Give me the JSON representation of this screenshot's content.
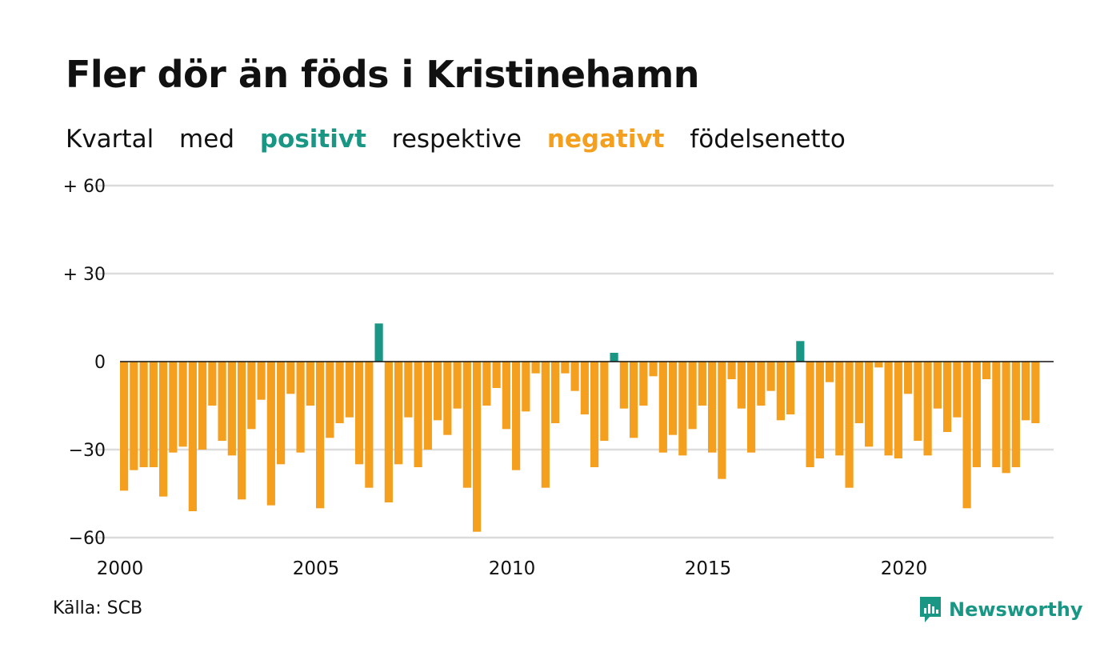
{
  "title": "Fler dör än föds i Kristinehamn",
  "subtitle": {
    "word1": "Kvartal",
    "word2": "med",
    "positive": "positivt",
    "word3": "respektive",
    "negative": "negativt",
    "word4": "födelsenetto"
  },
  "colors": {
    "positive": "#1a9685",
    "negative": "#f49f1d",
    "grid": "#dcdcdc",
    "axis": "#111111"
  },
  "source": "Källa: SCB",
  "logo": {
    "text": "Newsworthy",
    "icon": "newsworthy-chart-icon"
  },
  "chart_data": {
    "type": "bar",
    "ylim": [
      -60,
      60
    ],
    "y_ticks": [
      {
        "value": 60,
        "label": "+ 60"
      },
      {
        "value": 30,
        "label": "+ 30"
      },
      {
        "value": 0,
        "label": "0"
      },
      {
        "value": -30,
        "label": "−30"
      },
      {
        "value": -60,
        "label": "−60"
      }
    ],
    "x_ticks": [
      "2000",
      "2005",
      "2010",
      "2015",
      "2020"
    ],
    "x_start_year": 2000,
    "grid": true,
    "values": [
      -44,
      -37,
      -36,
      -36,
      -46,
      -31,
      -29,
      -51,
      -30,
      -15,
      -27,
      -32,
      -47,
      -23,
      -13,
      -49,
      -35,
      -11,
      -31,
      -15,
      -50,
      -26,
      -21,
      -19,
      -35,
      -43,
      13,
      -48,
      -35,
      -19,
      -36,
      -30,
      -20,
      -25,
      -16,
      -43,
      -58,
      -15,
      -9,
      -23,
      -37,
      -17,
      -4,
      -43,
      -21,
      -4,
      -10,
      -18,
      -36,
      -27,
      3,
      -16,
      -26,
      -15,
      -5,
      -31,
      -25,
      -32,
      -23,
      -15,
      -31,
      -40,
      -6,
      -16,
      -31,
      -15,
      -10,
      -20,
      -18,
      7,
      -36,
      -33,
      -7,
      -32,
      -43,
      -21,
      -29,
      -2,
      -32,
      -33,
      -11,
      -27,
      -32,
      -16,
      -24,
      -19,
      -50,
      -36,
      -6,
      -36,
      -38,
      -36,
      -20,
      -21
    ]
  }
}
